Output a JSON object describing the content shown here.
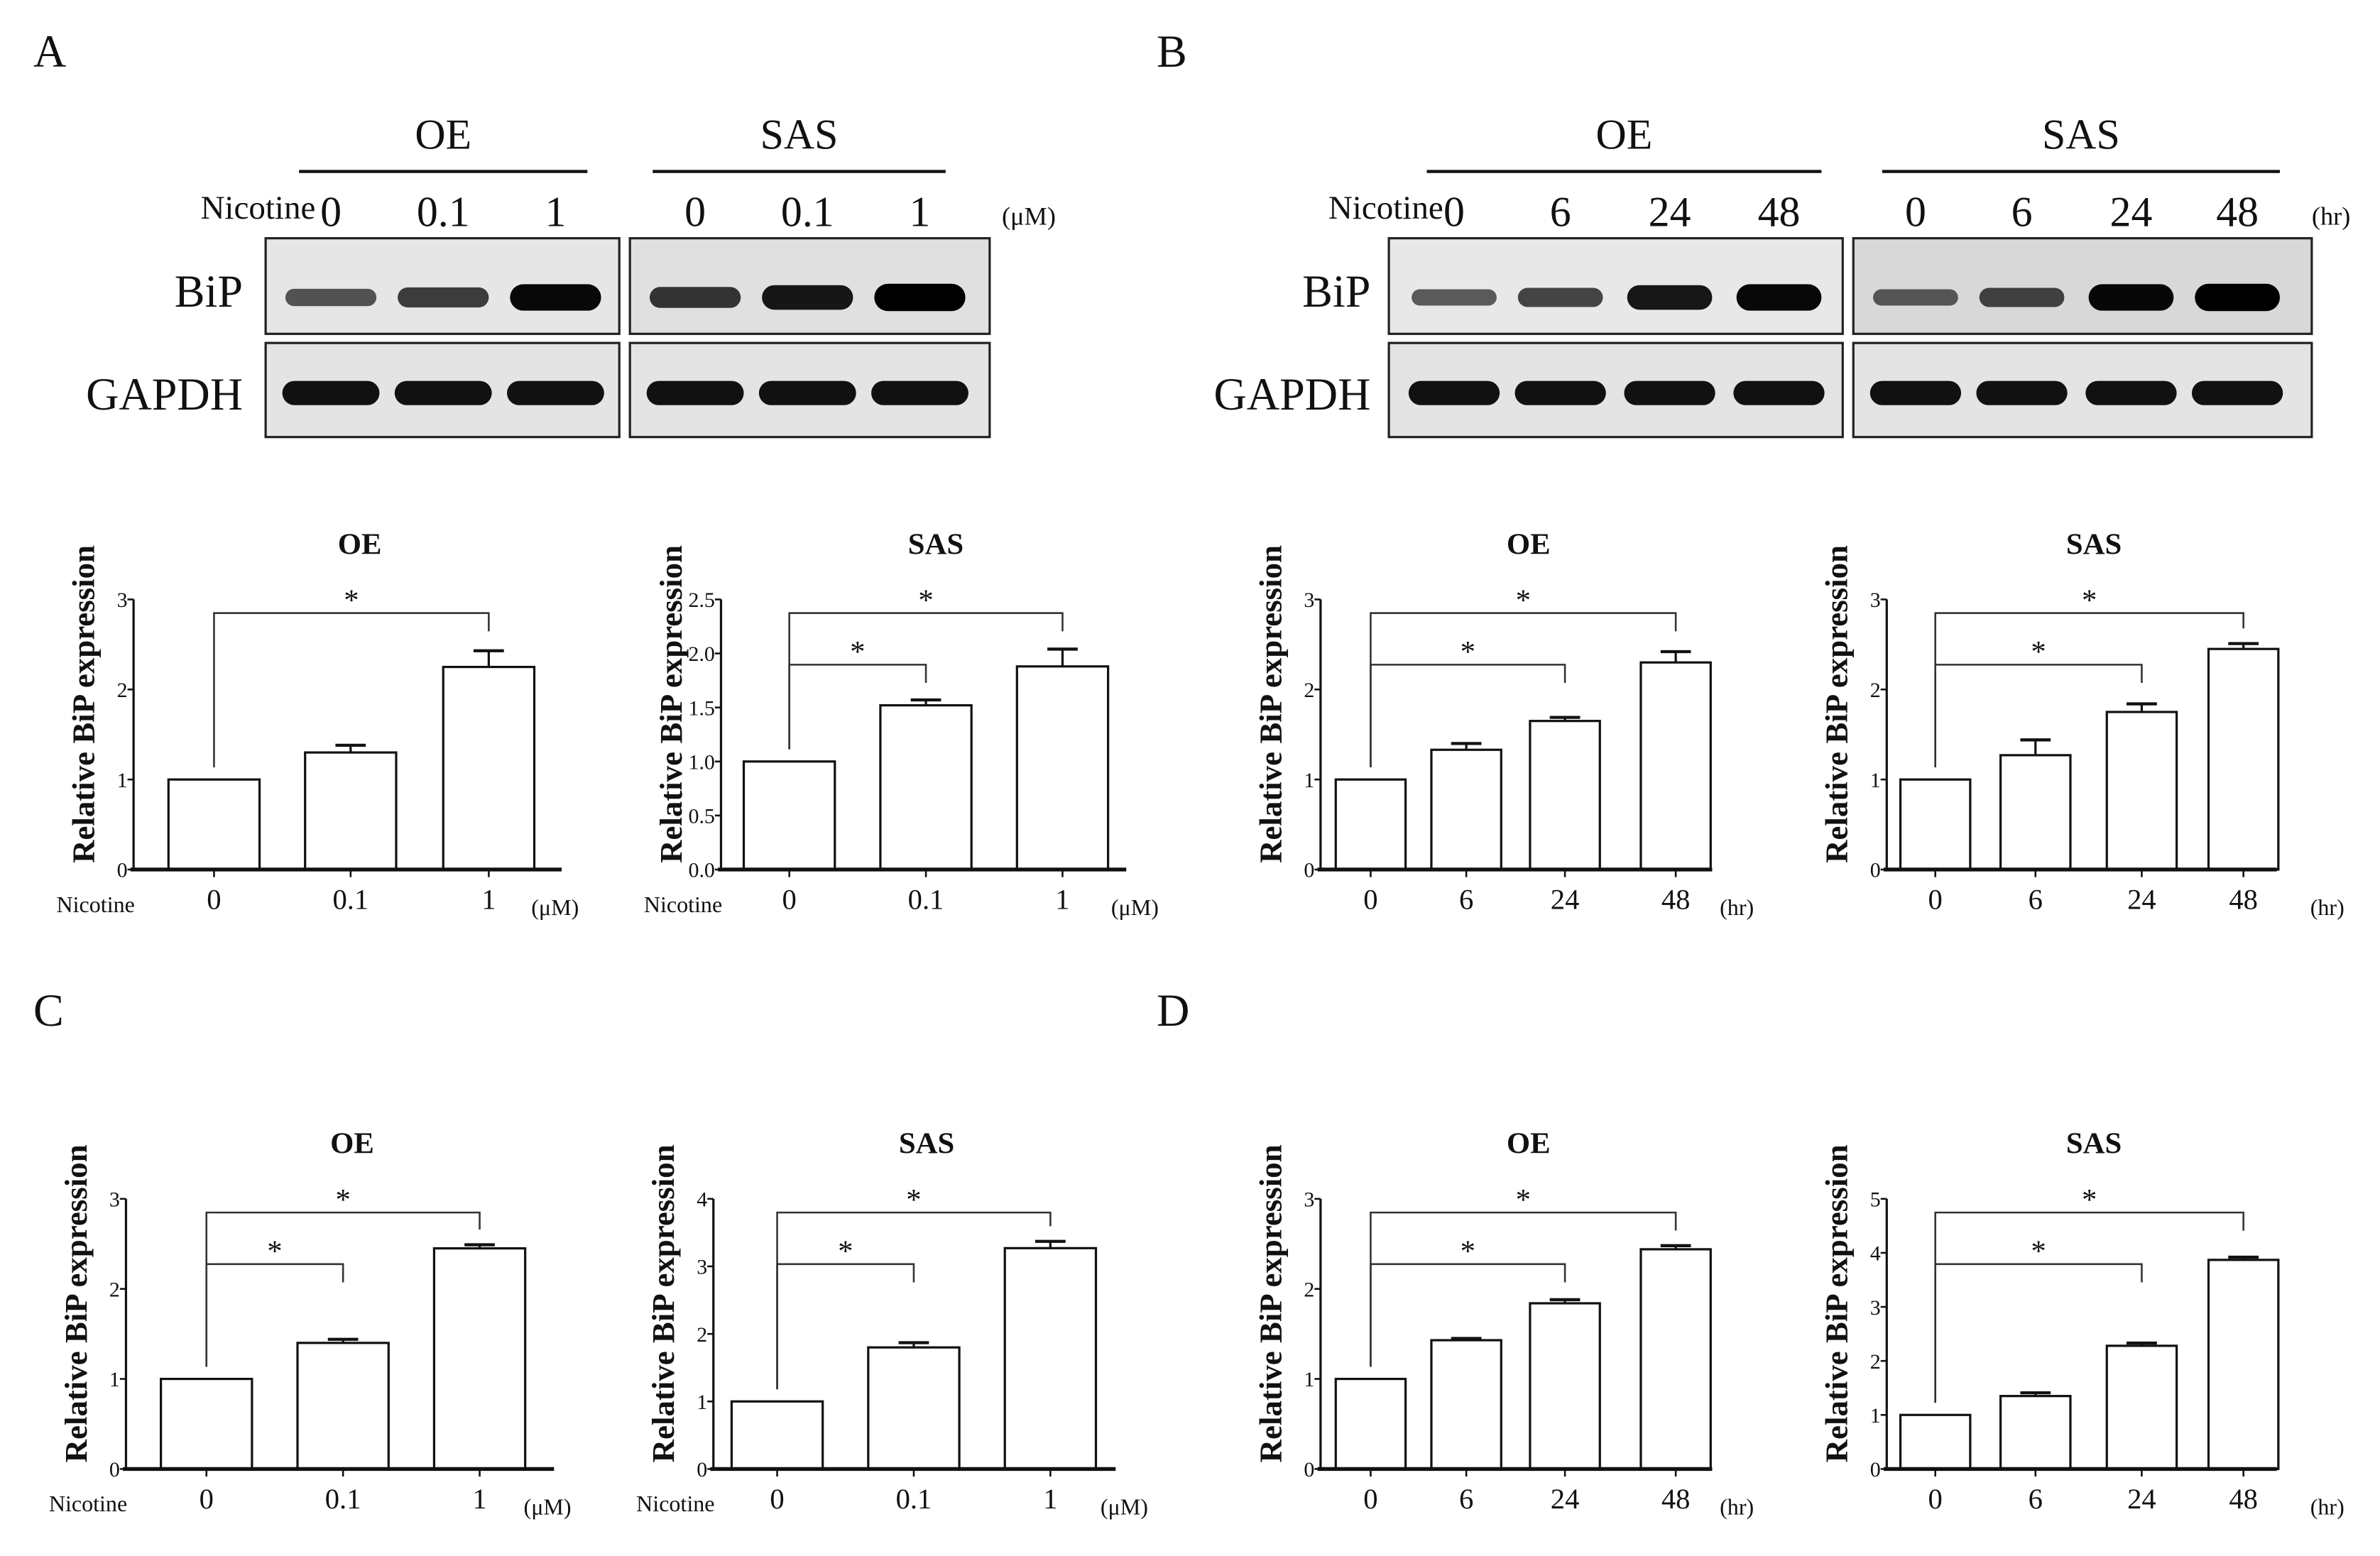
{
  "panels": {
    "A": {
      "letter": "A"
    },
    "B": {
      "letter": "B"
    },
    "C": {
      "letter": "C"
    },
    "D": {
      "letter": "D"
    }
  },
  "blots": {
    "A": {
      "groups": [
        "OE",
        "SAS"
      ],
      "treatment_label": "Nicotine",
      "lanes": [
        "0",
        "0.1",
        "1"
      ],
      "unit": "(μM)",
      "rows": [
        "BiP",
        "GAPDH"
      ]
    },
    "B": {
      "groups": [
        "OE",
        "SAS"
      ],
      "treatment_label": "Nicotine",
      "lanes": [
        "0",
        "6",
        "24",
        "48"
      ],
      "unit": "(hr)",
      "rows": [
        "BiP",
        "GAPDH"
      ]
    }
  },
  "chart_data": [
    {
      "id": "A-OE",
      "type": "bar",
      "title": "OE",
      "ylabel": "Relative BiP expression",
      "xlabel": "Nicotine",
      "unit": "(μM)",
      "categories": [
        "0",
        "0.1",
        "1"
      ],
      "values": [
        1.0,
        1.3,
        2.25
      ],
      "errors": [
        0,
        0.08,
        0.18
      ],
      "ylim": [
        0,
        3
      ],
      "yticks": [
        "0",
        "1",
        "2",
        "3"
      ],
      "significance": [
        {
          "from": 0,
          "to": 2,
          "label": "*"
        }
      ]
    },
    {
      "id": "A-SAS",
      "type": "bar",
      "title": "SAS",
      "ylabel": "Relative BiP expression",
      "xlabel": "Nicotine",
      "unit": "(μM)",
      "categories": [
        "0",
        "0.1",
        "1"
      ],
      "values": [
        1.0,
        1.52,
        1.88
      ],
      "errors": [
        0,
        0.05,
        0.16
      ],
      "ylim": [
        0,
        2.5
      ],
      "yticks": [
        "0.0",
        "0.5",
        "1.0",
        "1.5",
        "2.0",
        "2.5"
      ],
      "significance": [
        {
          "from": 0,
          "to": 2,
          "label": "*"
        },
        {
          "from": 0,
          "to": 1,
          "label": "*"
        }
      ]
    },
    {
      "id": "B-OE",
      "type": "bar",
      "title": "OE",
      "ylabel": "Relative BiP expression",
      "xlabel": "",
      "unit": "(hr)",
      "categories": [
        "0",
        "6",
        "24",
        "48"
      ],
      "values": [
        1.0,
        1.33,
        1.65,
        2.3
      ],
      "errors": [
        0,
        0.07,
        0.04,
        0.12
      ],
      "ylim": [
        0,
        3
      ],
      "yticks": [
        "0",
        "1",
        "2",
        "3"
      ],
      "significance": [
        {
          "from": 0,
          "to": 3,
          "label": "*"
        },
        {
          "from": 0,
          "to": 2,
          "label": "*"
        }
      ]
    },
    {
      "id": "B-SAS",
      "type": "bar",
      "title": "SAS",
      "ylabel": "Relative BiP expression",
      "xlabel": "",
      "unit": "(hr)",
      "categories": [
        "0",
        "6",
        "24",
        "48"
      ],
      "values": [
        1.0,
        1.27,
        1.75,
        2.45
      ],
      "errors": [
        0,
        0.17,
        0.09,
        0.06
      ],
      "ylim": [
        0,
        3
      ],
      "yticks": [
        "0",
        "1",
        "2",
        "3"
      ],
      "significance": [
        {
          "from": 0,
          "to": 3,
          "label": "*"
        },
        {
          "from": 0,
          "to": 2,
          "label": "*"
        }
      ]
    },
    {
      "id": "C-OE",
      "type": "bar",
      "title": "OE",
      "ylabel": "Relative BiP expression",
      "xlabel": "Nicotine",
      "unit": "(μM)",
      "categories": [
        "0",
        "0.1",
        "1"
      ],
      "values": [
        1.0,
        1.4,
        2.45
      ],
      "errors": [
        0,
        0.04,
        0.04
      ],
      "ylim": [
        0,
        3
      ],
      "yticks": [
        "0",
        "1",
        "2",
        "3"
      ],
      "significance": [
        {
          "from": 0,
          "to": 2,
          "label": "*"
        },
        {
          "from": 0,
          "to": 1,
          "label": "*"
        }
      ]
    },
    {
      "id": "C-SAS",
      "type": "bar",
      "title": "SAS",
      "ylabel": "Relative BiP expression",
      "xlabel": "Nicotine",
      "unit": "(μM)",
      "categories": [
        "0",
        "0.1",
        "1"
      ],
      "values": [
        1.0,
        1.8,
        3.27
      ],
      "errors": [
        0,
        0.07,
        0.1
      ],
      "ylim": [
        0,
        4
      ],
      "yticks": [
        "0",
        "1",
        "2",
        "3",
        "4"
      ],
      "significance": [
        {
          "from": 0,
          "to": 2,
          "label": "*"
        },
        {
          "from": 0,
          "to": 1,
          "label": "*"
        }
      ]
    },
    {
      "id": "D-OE",
      "type": "bar",
      "title": "OE",
      "ylabel": "Relative BiP expression",
      "xlabel": "",
      "unit": "(hr)",
      "categories": [
        "0",
        "6",
        "24",
        "48"
      ],
      "values": [
        1.0,
        1.43,
        1.84,
        2.44
      ],
      "errors": [
        0,
        0.02,
        0.04,
        0.04
      ],
      "ylim": [
        0,
        3
      ],
      "yticks": [
        "0",
        "1",
        "2",
        "3"
      ],
      "significance": [
        {
          "from": 0,
          "to": 3,
          "label": "*"
        },
        {
          "from": 0,
          "to": 2,
          "label": "*"
        }
      ]
    },
    {
      "id": "D-SAS",
      "type": "bar",
      "title": "SAS",
      "ylabel": "Relative BiP expression",
      "xlabel": "",
      "unit": "(hr)",
      "categories": [
        "0",
        "6",
        "24",
        "48"
      ],
      "values": [
        1.0,
        1.35,
        2.28,
        3.87
      ],
      "errors": [
        0,
        0.06,
        0.05,
        0.05
      ],
      "ylim": [
        0,
        5
      ],
      "yticks": [
        "0",
        "1",
        "2",
        "3",
        "4",
        "5"
      ],
      "significance": [
        {
          "from": 0,
          "to": 3,
          "label": "*"
        },
        {
          "from": 0,
          "to": 2,
          "label": "*"
        }
      ]
    }
  ]
}
